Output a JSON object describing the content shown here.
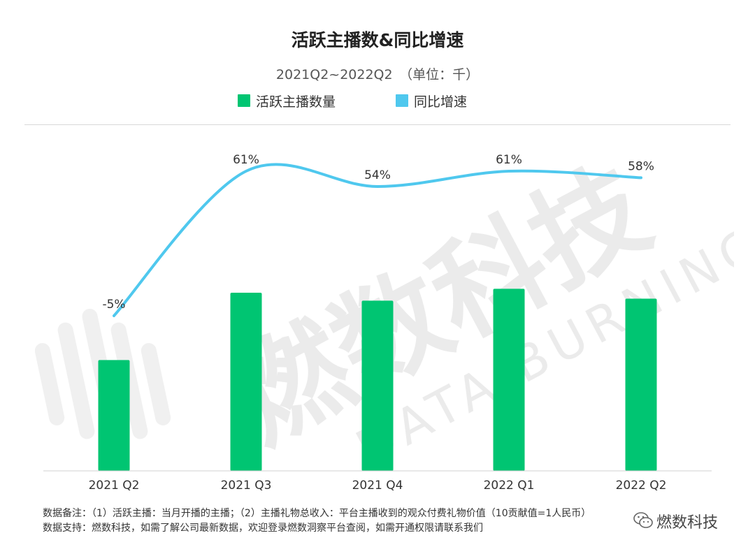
{
  "header": {
    "title": "活跃主播数&同比增速",
    "subtitle": "2021Q2~2022Q2　（单位：千）"
  },
  "legend": {
    "bar_label": "活跃主播数量",
    "line_label": "同比增速"
  },
  "colors": {
    "bar": "#00c572",
    "line": "#4fc8ee"
  },
  "chart_data": {
    "type": "bar+line",
    "categories": [
      "2021 Q2",
      "2021 Q3",
      "2021 Q4",
      "2022 Q1",
      "2022 Q2"
    ],
    "series": [
      {
        "name": "活跃主播数量",
        "type": "bar",
        "values": [
          56,
          90,
          86,
          92,
          87
        ]
      },
      {
        "name": "同比增速",
        "type": "line",
        "values": [
          -5,
          61,
          54,
          61,
          58
        ],
        "labels": [
          "-5%",
          "61%",
          "54%",
          "61%",
          "58%"
        ]
      }
    ],
    "ylim": [
      0,
      100
    ]
  },
  "footer": {
    "note": "数据备注：（1）活跃主播：当月开播的主播；（2）主播礼物总收入：平台主播收到的观众付费礼物价值（10贡献值=1人民币）",
    "support": "数据支持：燃数科技，如需了解公司最新数据，欢迎登录燃数洞察平台查阅，如需开通权限请联系我们"
  },
  "watermark": {
    "cn": "燃数科技",
    "en": "DATA BURNING"
  },
  "brand": {
    "text": "燃数科技"
  }
}
